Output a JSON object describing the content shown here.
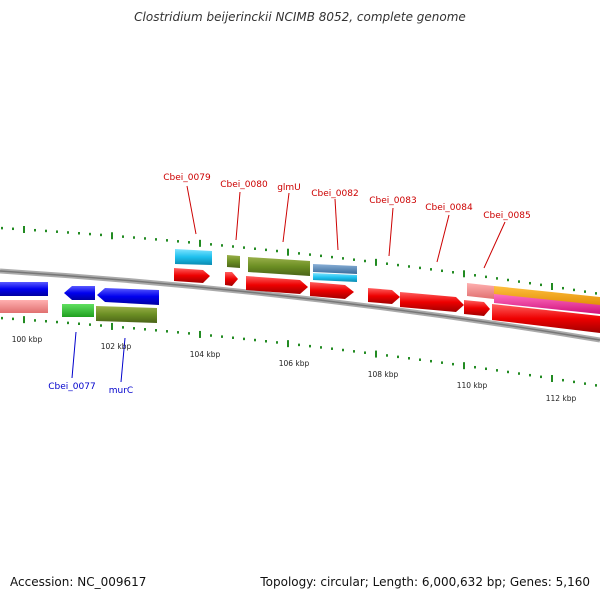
{
  "title": "Clostridium beijerinckii NCIMB 8052, complete genome",
  "footer": {
    "accession": "Accession: NC_009617",
    "topology": "Topology: circular; Length: 6,000,632 bp; Genes: 5,160"
  },
  "scale_labels": [
    "100 kbp",
    "102 kbp",
    "104 kbp",
    "106 kbp",
    "108 kbp",
    "110 kbp",
    "112 kbp"
  ],
  "gene_labels_forward": [
    "Cbei_0079",
    "Cbei_0080",
    "glmU",
    "Cbei_0082",
    "Cbei_0083",
    "Cbei_0084",
    "Cbei_0085"
  ],
  "gene_labels_reverse": [
    "Cbei_0077",
    "murC"
  ],
  "colors": {
    "forward_label": "#cc0000",
    "reverse_label": "#0000cc",
    "backbone": "#888888",
    "tick": "#228b22"
  }
}
